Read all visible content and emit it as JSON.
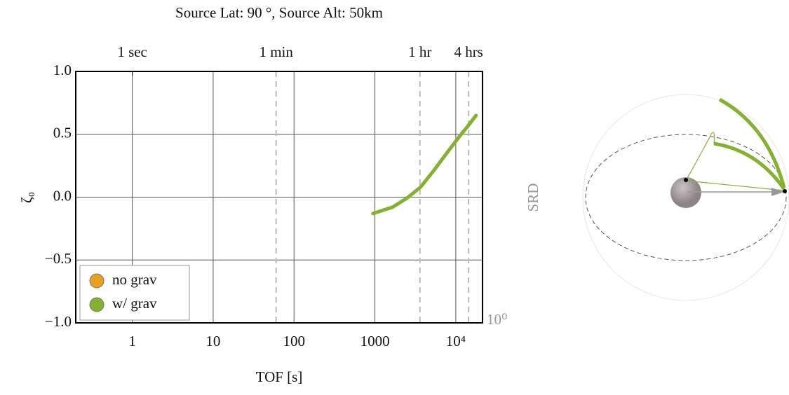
{
  "chart_data": {
    "type": "line",
    "title": "Source Lat: 90 °, Source Alt: 50km",
    "x_label": "TOF [s]",
    "y_label": "ζ₀",
    "log_x": true,
    "grid": true,
    "legend_position": "lower left",
    "xlim": [
      0.2,
      21400
    ],
    "ylim": [
      -1,
      1
    ],
    "xticks": [
      1,
      10,
      100,
      1000,
      {
        "value": 10000,
        "label": "10⁴"
      }
    ],
    "yticks": [
      {
        "value": -1,
        "label": "−1.0"
      },
      {
        "value": -0.5,
        "label": "−0.5"
      },
      {
        "value": 0,
        "label": "0.0"
      },
      {
        "value": 0.5,
        "label": "0.5"
      },
      {
        "value": 1,
        "label": "1.0"
      }
    ],
    "top_xticks": [
      {
        "value": 1,
        "label": "1 sec"
      },
      {
        "value": 60,
        "label": "1 min"
      },
      {
        "value": 3600,
        "label": "1 hr"
      },
      {
        "value": 14400,
        "label": "4 hrs"
      }
    ],
    "dashed_vlines": [
      60,
      3600,
      14400
    ],
    "x": [
      944,
      1650,
      2460,
      3670,
      5470,
      8150,
      11000,
      14300,
      17800
    ],
    "series": [
      {
        "name": "no grav",
        "color": "#e8a020",
        "values": [
          null,
          null,
          null,
          null,
          null,
          null,
          null,
          null,
          null
        ]
      },
      {
        "name": "w/ grav",
        "color": "#86b030",
        "values": [
          -0.13,
          -0.08,
          -0.01,
          0.08,
          0.22,
          0.37,
          0.48,
          0.57,
          0.65
        ]
      }
    ],
    "side_axis_label": "SRD",
    "side_axis_tick": "10⁰"
  }
}
